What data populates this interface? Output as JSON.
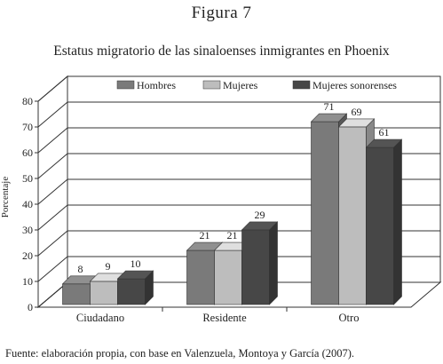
{
  "figure_label": "Figura 7",
  "source_note": "Fuente: elaboración propia, con base en Valenzuela, Montoya y García (2007).",
  "chart_data": {
    "type": "bar",
    "title": "Estatus migratorio de las sinaloenses inmigrantes en Phoenix",
    "xlabel": "",
    "ylabel": "Porcentaje",
    "ylim": [
      0,
      80
    ],
    "yticks": [
      0,
      10,
      20,
      30,
      40,
      50,
      60,
      70,
      80
    ],
    "categories": [
      "Ciudadano",
      "Residente",
      "Otro"
    ],
    "series": [
      {
        "name": "Hombres",
        "values": [
          8,
          21,
          71
        ],
        "color": "#7a7a7a"
      },
      {
        "name": "Mujeres",
        "values": [
          9,
          21,
          69
        ],
        "color": "#bdbdbd"
      },
      {
        "name": "Mujeres sonorenses",
        "values": [
          10,
          29,
          61
        ],
        "color": "#474747"
      }
    ],
    "legend": "top",
    "grid": true,
    "style": "3d"
  }
}
